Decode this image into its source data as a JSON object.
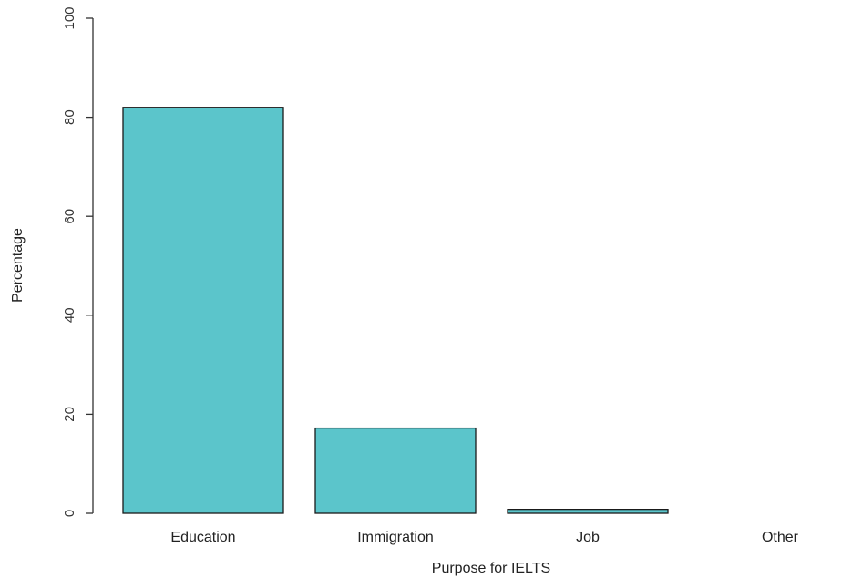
{
  "chart_data": {
    "type": "bar",
    "categories": [
      "Education",
      "Immigration",
      "Job",
      "Other"
    ],
    "values": [
      82,
      17.2,
      0.8,
      0
    ],
    "title": "",
    "xlabel": "Purpose for IELTS",
    "ylabel": "Percentage",
    "ylim": [
      0,
      100
    ],
    "yticks": [
      0,
      20,
      40,
      60,
      80,
      100
    ],
    "grid": false,
    "bar_color": "#5bc5cb",
    "bar_edge_color": "#1a1a1a"
  }
}
